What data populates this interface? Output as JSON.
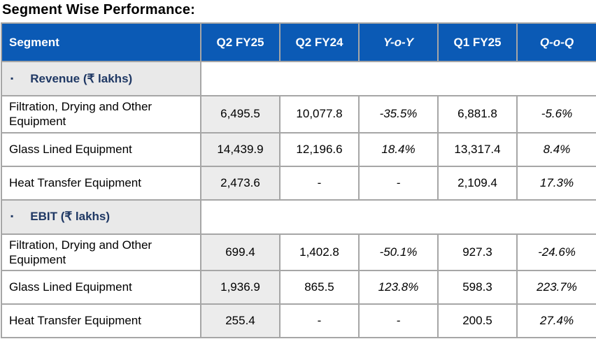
{
  "title": "Segment Wise Performance:",
  "colors": {
    "header_bg": "#0b5ab5",
    "header_text": "#ffffff",
    "section_bg": "#e9e9e9",
    "section_text": "#1f3864",
    "highlight_col_bg": "#ececec",
    "border": "#a6a6a6"
  },
  "bullet_icon": "▪",
  "table": {
    "columns": [
      "Segment",
      "Q2 FY25",
      "Q2 FY24",
      "Y-o-Y",
      "Q1 FY25",
      "Q-o-Q"
    ],
    "italic_columns": [
      "Y-o-Y",
      "Q-o-Q"
    ],
    "sections": [
      {
        "label": "Revenue (₹ lakhs)",
        "rows": [
          {
            "segment": "Filtration, Drying and Other Equipment",
            "q2fy25": "6,495.5",
            "q2fy24": "10,077.8",
            "yoy": "-35.5%",
            "q1fy25": "6,881.8",
            "qoq": "-5.6%"
          },
          {
            "segment": "Glass Lined Equipment",
            "q2fy25": "14,439.9",
            "q2fy24": "12,196.6",
            "yoy": "18.4%",
            "q1fy25": "13,317.4",
            "qoq": "8.4%"
          },
          {
            "segment": "Heat Transfer Equipment",
            "q2fy25": "2,473.6",
            "q2fy24": "-",
            "yoy": "-",
            "q1fy25": "2,109.4",
            "qoq": "17.3%"
          }
        ]
      },
      {
        "label": "EBIT (₹ lakhs)",
        "rows": [
          {
            "segment": "Filtration, Drying and Other Equipment",
            "q2fy25": "699.4",
            "q2fy24": "1,402.8",
            "yoy": "-50.1%",
            "q1fy25": "927.3",
            "qoq": "-24.6%"
          },
          {
            "segment": "Glass Lined Equipment",
            "q2fy25": "1,936.9",
            "q2fy24": "865.5",
            "yoy": "123.8%",
            "q1fy25": "598.3",
            "qoq": "223.7%"
          },
          {
            "segment": "Heat Transfer Equipment",
            "q2fy25": "255.4",
            "q2fy24": "-",
            "yoy": "-",
            "q1fy25": "200.5",
            "qoq": "27.4%"
          }
        ]
      }
    ]
  }
}
